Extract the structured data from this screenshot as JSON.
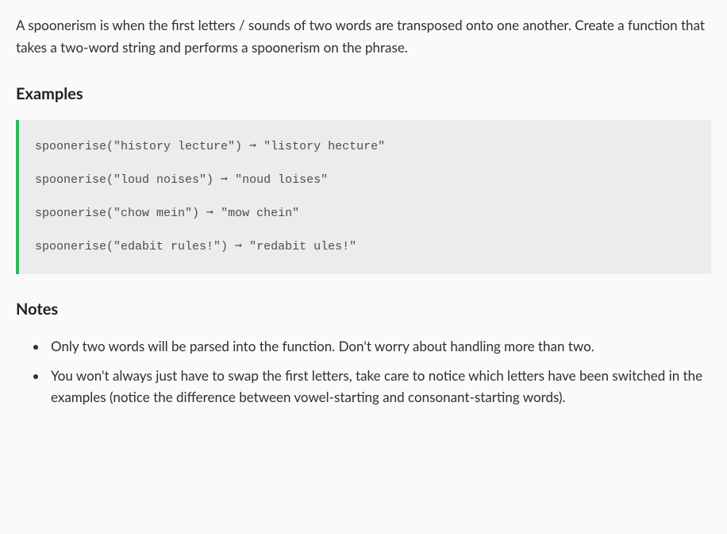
{
  "intro": "A spoonerism is when the first letters / sounds of two words are transposed onto one another. Create a function that takes a two-word string and performs a spoonerism on the phrase.",
  "examples_heading": "Examples",
  "code_lines": [
    "spoonerise(\"history lecture\") ➞ \"listory hecture\"",
    "spoonerise(\"loud noises\") ➞ \"noud loises\"",
    "spoonerise(\"chow mein\") ➞ \"mow chein\"",
    "spoonerise(\"edabit rules!\") ➞ \"redabit ules!\""
  ],
  "notes_heading": "Notes",
  "notes": [
    "Only two words will be parsed into the function. Don't worry about handling more than two.",
    "You won't always just have to swap the first letters, take care to notice which letters have been switched in the examples (notice the difference between vowel-starting and consonant-starting words)."
  ],
  "colors": {
    "background": "#fafafa",
    "text": "#2d3033",
    "code_bg": "#ececec",
    "accent_border": "#2fb658",
    "code_text": "#4a4d50"
  }
}
